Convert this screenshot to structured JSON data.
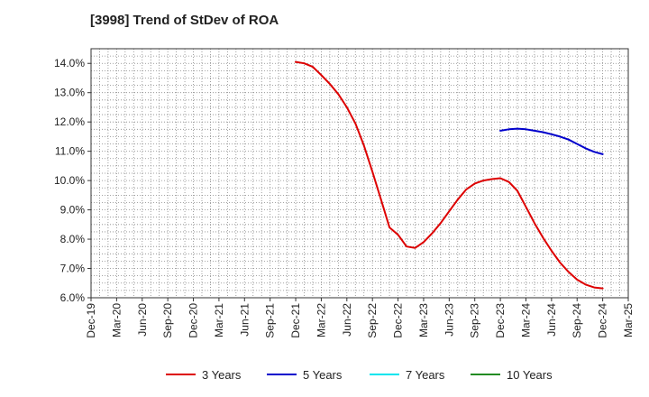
{
  "chart_data": {
    "type": "line",
    "title": "[3998]  Trend of StDev of ROA",
    "xlabel": "",
    "ylabel": "",
    "x_ticks": [
      "Dec-19",
      "Mar-20",
      "Jun-20",
      "Sep-20",
      "Dec-20",
      "Mar-21",
      "Jun-21",
      "Sep-21",
      "Dec-21",
      "Mar-22",
      "Jun-22",
      "Sep-22",
      "Dec-22",
      "Mar-23",
      "Jun-23",
      "Sep-23",
      "Dec-23",
      "Mar-24",
      "Jun-24",
      "Sep-24",
      "Dec-24",
      "Mar-25"
    ],
    "y_ticks": [
      "6.0%",
      "7.0%",
      "8.0%",
      "9.0%",
      "10.0%",
      "11.0%",
      "12.0%",
      "13.0%",
      "14.0%"
    ],
    "ylim": [
      6.0,
      14.5
    ],
    "grid": true,
    "legend_position": "bottom",
    "series": [
      {
        "name": "3 Years",
        "color": "#dd0000",
        "x": [
          "Dec-21",
          "Jan-22",
          "Feb-22",
          "Mar-22",
          "Apr-22",
          "May-22",
          "Jun-22",
          "Jul-22",
          "Aug-22",
          "Sep-22",
          "Oct-22",
          "Nov-22",
          "Dec-22",
          "Jan-23",
          "Feb-23",
          "Mar-23",
          "Apr-23",
          "May-23",
          "Jun-23",
          "Jul-23",
          "Aug-23",
          "Sep-23",
          "Oct-23",
          "Nov-23",
          "Dec-23",
          "Jan-24",
          "Feb-24",
          "Mar-24",
          "Apr-24",
          "May-24",
          "Jun-24",
          "Jul-24",
          "Aug-24",
          "Sep-24",
          "Oct-24",
          "Nov-24",
          "Dec-24"
        ],
        "values": [
          14.05,
          14.0,
          13.88,
          13.6,
          13.3,
          12.95,
          12.5,
          11.95,
          11.2,
          10.3,
          9.35,
          8.4,
          8.15,
          7.75,
          7.7,
          7.9,
          8.2,
          8.55,
          8.95,
          9.35,
          9.7,
          9.9,
          10.0,
          10.05,
          10.08,
          9.95,
          9.65,
          9.1,
          8.55,
          8.05,
          7.6,
          7.2,
          6.88,
          6.62,
          6.45,
          6.35,
          6.32
        ]
      },
      {
        "name": "5 Years",
        "color": "#0000cc",
        "x": [
          "Dec-23",
          "Jan-24",
          "Feb-24",
          "Mar-24",
          "Apr-24",
          "May-24",
          "Jun-24",
          "Jul-24",
          "Aug-24",
          "Sep-24",
          "Oct-24",
          "Nov-24",
          "Dec-24"
        ],
        "values": [
          11.7,
          11.75,
          11.77,
          11.75,
          11.7,
          11.65,
          11.58,
          11.5,
          11.4,
          11.25,
          11.1,
          10.98,
          10.9
        ]
      },
      {
        "name": "7 Years",
        "color": "#00e5ee",
        "x": [],
        "values": []
      },
      {
        "name": "10 Years",
        "color": "#228b22",
        "x": [],
        "values": []
      }
    ]
  }
}
